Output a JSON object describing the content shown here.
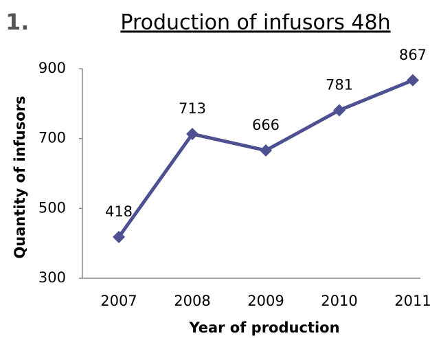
{
  "section_number": "1.",
  "chart_data": {
    "type": "line",
    "title": "Production of infusors 48h",
    "x_label": "Year of production",
    "y_label": "Quantity of infusors",
    "categories": [
      "2007",
      "2008",
      "2009",
      "2010",
      "2011"
    ],
    "series": [
      {
        "name": "Quantity of infusors",
        "color": "#4d5191",
        "values": [
          418,
          713,
          666,
          781,
          867
        ]
      }
    ],
    "ylim": [
      300,
      900
    ],
    "yticks": [
      300,
      500,
      700,
      900
    ],
    "grid": false,
    "data_labels": true
  }
}
